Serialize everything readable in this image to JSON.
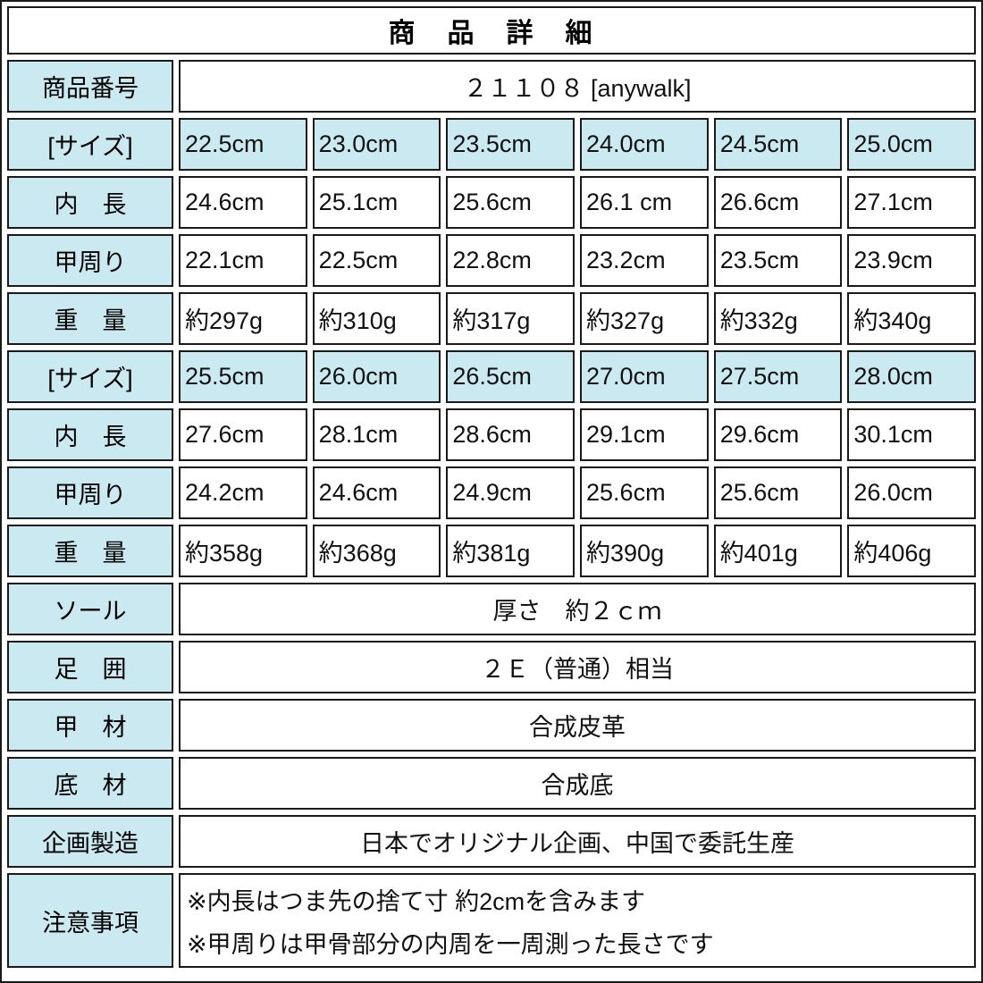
{
  "title": "商　品　詳　細",
  "colors": {
    "highlight": "#cae9f1",
    "border": "#1a1a1a",
    "background": "#ffffff"
  },
  "product_number": {
    "label": "商品番号",
    "value": "２１１０８ [anywalk]"
  },
  "block1": {
    "size": {
      "label": "[サイズ]",
      "values": [
        "22.5cm",
        "23.0cm",
        "23.5cm",
        "24.0cm",
        "24.5cm",
        "25.0cm"
      ]
    },
    "inner_length": {
      "label": "内　長",
      "values": [
        "24.6cm",
        "25.1cm",
        "25.6cm",
        "26.1 cm",
        "26.6cm",
        "27.1cm"
      ]
    },
    "instep_girth": {
      "label": "甲周り",
      "values": [
        "22.1cm",
        "22.5cm",
        "22.8cm",
        "23.2cm",
        "23.5cm",
        "23.9cm"
      ]
    },
    "weight": {
      "label": "重　量",
      "values": [
        "約297g",
        "約310g",
        "約317g",
        "約327g",
        "約332g",
        "約340g"
      ]
    }
  },
  "block2": {
    "size": {
      "label": "[サイズ]",
      "values": [
        "25.5cm",
        "26.0cm",
        "26.5cm",
        "27.0cm",
        "27.5cm",
        "28.0cm"
      ]
    },
    "inner_length": {
      "label": "内　長",
      "values": [
        "27.6cm",
        "28.1cm",
        "28.6cm",
        "29.1cm",
        "29.6cm",
        "30.1cm"
      ]
    },
    "instep_girth": {
      "label": "甲周り",
      "values": [
        "24.2cm",
        "24.6cm",
        "24.9cm",
        "25.6cm",
        "25.6cm",
        "26.0cm"
      ]
    },
    "weight": {
      "label": "重　量",
      "values": [
        "約358g",
        "約368g",
        "約381g",
        "約390g",
        "約401g",
        "約406g"
      ]
    }
  },
  "specs": [
    {
      "label": "ソール",
      "value": "厚さ　約２ｃｍ"
    },
    {
      "label": "足　囲",
      "value": "２Ｅ（普通）相当"
    },
    {
      "label": "甲　材",
      "value": "合成皮革"
    },
    {
      "label": "底　材",
      "value": "合成底"
    },
    {
      "label": "企画製造",
      "value": "日本でオリジナル企画、中国で委託生産"
    }
  ],
  "notes": {
    "label": "注意事項",
    "lines": [
      "※内長はつま先の捨て寸 約2cmを含みます",
      "※甲周りは甲骨部分の内周を一周測った長さです"
    ]
  }
}
